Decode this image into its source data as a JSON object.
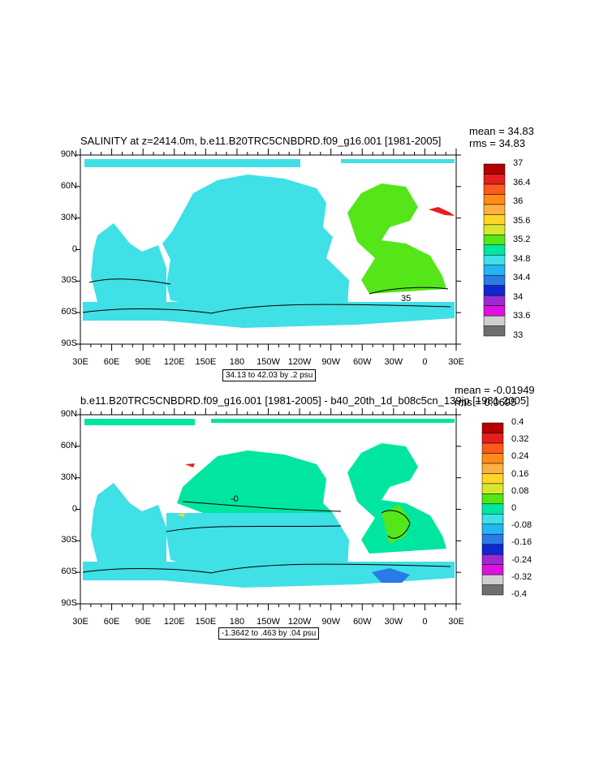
{
  "panel1": {
    "title": "SALINITY at z=2414.0m, b.e11.B20TRC5CNBDRD.f09_g16.001 [1981-2005]",
    "mean": "mean = 34.83",
    "rms": "rms = 34.83",
    "range": "34.13 to 42.03 by .2 psu",
    "contour_label": "35",
    "colorbar": {
      "colors": [
        "#6e6e6e",
        "#cfcfcf",
        "#e011e0",
        "#9a2bd2",
        "#0f28d2",
        "#2a7be8",
        "#23b6f2",
        "#3fe0e6",
        "#00e6a0",
        "#55e619",
        "#d9e62d",
        "#ffd52a",
        "#ffb040",
        "#ff8c1a",
        "#ff5a1e",
        "#e61e1e",
        "#b60000"
      ],
      "labels": [
        "33",
        "33.6",
        "34",
        "34.4",
        "34.8",
        "35.2",
        "35.6",
        "36",
        "36.4",
        "37"
      ]
    }
  },
  "panel2": {
    "title": "b.e11.B20TRC5CNBDRD.f09_g16.001 [1981-2005] - b40_20th_1d_b08c5cn_139jp [1981-2005]",
    "mean": "mean = -0.01949",
    "rms": "rms = 0.0695",
    "range": "-1.3642 to .463 by .04 psu",
    "contour_label": "-0",
    "colorbar": {
      "colors": [
        "#6e6e6e",
        "#cfcfcf",
        "#e011e0",
        "#9a2bd2",
        "#0f28d2",
        "#2a7be8",
        "#23b6f2",
        "#3fe0e6",
        "#00e6a0",
        "#55e619",
        "#d9e62d",
        "#ffd52a",
        "#ffb040",
        "#ff8c1a",
        "#ff5a1e",
        "#e61e1e",
        "#b60000"
      ],
      "labels": [
        "-0.4",
        "-0.32",
        "-0.24",
        "-0.16",
        "-0.08",
        "0",
        "0.08",
        "0.16",
        "0.24",
        "0.32",
        "0.4"
      ]
    }
  },
  "axes": {
    "y_labels": [
      "90N",
      "60N",
      "30N",
      "0",
      "30S",
      "60S",
      "90S"
    ],
    "x_labels": [
      "30E",
      "60E",
      "90E",
      "120E",
      "150E",
      "180",
      "150W",
      "120W",
      "90W",
      "60W",
      "30W",
      "0",
      "30E"
    ]
  }
}
